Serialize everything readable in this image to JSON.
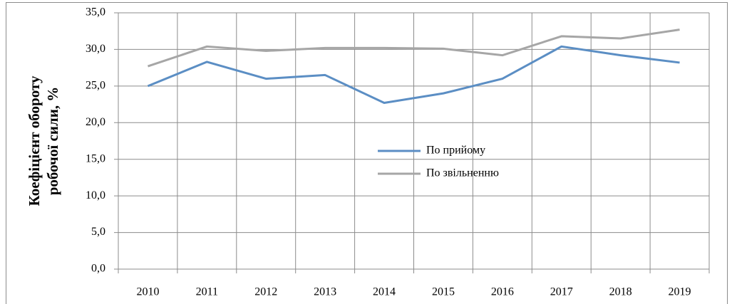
{
  "chart_data": {
    "type": "line",
    "y_label_lines": [
      "Коефіцієнт обороту",
      "робочої сили, %"
    ],
    "categories": [
      "2010",
      "2011",
      "2012",
      "2013",
      "2014",
      "2015",
      "2016",
      "2017",
      "2018",
      "2019"
    ],
    "series": [
      {
        "name": "По прийому",
        "color": "#5b8ec4",
        "values": [
          25.0,
          28.3,
          26.0,
          26.5,
          22.7,
          24.0,
          26.0,
          30.4,
          29.2,
          28.2
        ]
      },
      {
        "name": "По звільненню",
        "color": "#a6a6a6",
        "values": [
          27.7,
          30.4,
          29.8,
          30.2,
          30.2,
          30.1,
          29.2,
          31.8,
          31.5,
          32.7
        ]
      }
    ],
    "ylim": [
      0,
      35
    ],
    "yticks": [
      {
        "value": 0,
        "label": "0,0"
      },
      {
        "value": 5,
        "label": "5,0"
      },
      {
        "value": 10,
        "label": "10,0"
      },
      {
        "value": 15,
        "label": "15,0"
      },
      {
        "value": 20,
        "label": "20,0"
      },
      {
        "value": 25,
        "label": "25,0"
      },
      {
        "value": 30,
        "label": "30,0"
      },
      {
        "value": 35,
        "label": "35,0"
      }
    ],
    "grid": true,
    "legend": "center"
  }
}
